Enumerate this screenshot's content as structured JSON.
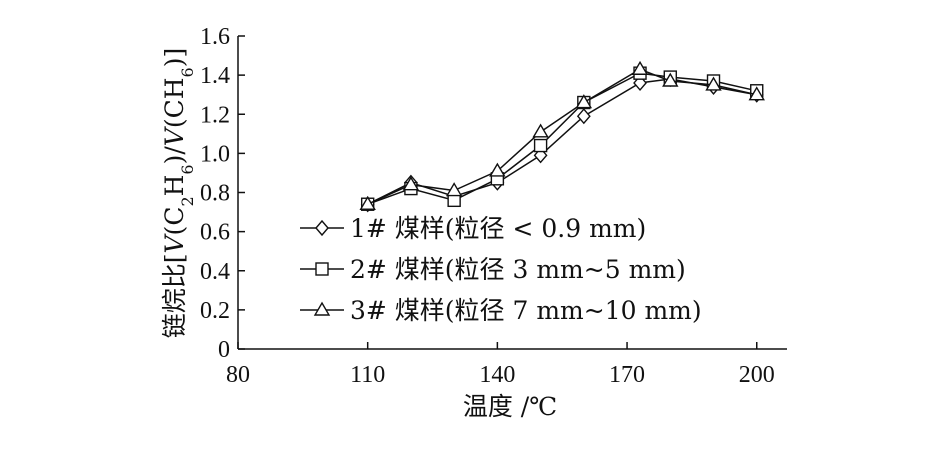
{
  "chart_data": {
    "type": "line",
    "xlabel": "温度 /℃",
    "ylabel": "链烷比[V(C2H6)/V(CH6)]",
    "x_ticks": [
      "80",
      "110",
      "140",
      "170",
      "200"
    ],
    "y_ticks": [
      "0",
      "0.2",
      "0.4",
      "0.6",
      "0.8",
      "1.0",
      "1.2",
      "1.4",
      "1.6"
    ],
    "xlim": [
      80,
      207
    ],
    "ylim": [
      0,
      1.6
    ],
    "grid": false,
    "legend_position": "center-left",
    "series": [
      {
        "name": "1# 煤样(粒径 < 0.9 mm)",
        "marker": "diamond",
        "x": [
          110,
          120,
          130,
          140,
          150,
          160,
          173,
          180,
          190,
          200
        ],
        "y": [
          0.74,
          0.85,
          0.78,
          0.85,
          0.99,
          1.19,
          1.36,
          1.38,
          1.34,
          1.3
        ]
      },
      {
        "name": "2# 煤样(粒径 3 mm~5 mm)",
        "marker": "square",
        "x": [
          110,
          120,
          130,
          140,
          150,
          160,
          173,
          180,
          190,
          200
        ],
        "y": [
          0.74,
          0.82,
          0.76,
          0.87,
          1.04,
          1.26,
          1.41,
          1.39,
          1.37,
          1.32
        ]
      },
      {
        "name": "3# 煤样(粒径 7 mm~10 mm)",
        "marker": "triangle",
        "x": [
          110,
          120,
          130,
          140,
          150,
          160,
          173,
          180,
          190,
          200
        ],
        "y": [
          0.74,
          0.84,
          0.81,
          0.91,
          1.11,
          1.26,
          1.43,
          1.37,
          1.35,
          1.3
        ]
      }
    ]
  }
}
